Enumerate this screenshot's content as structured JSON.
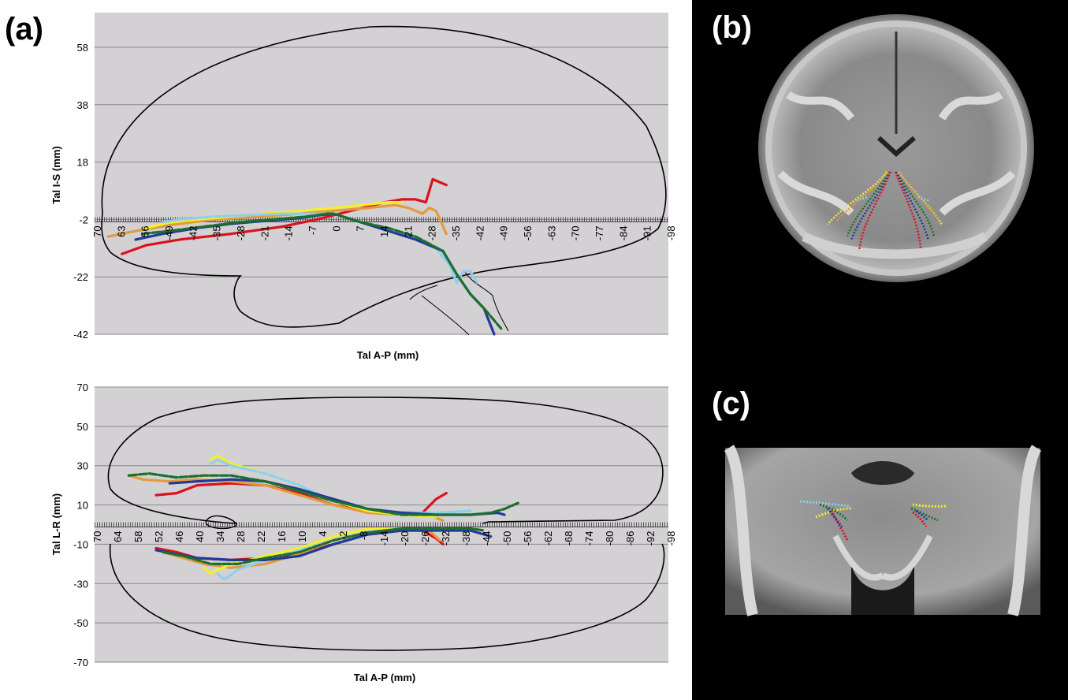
{
  "figure": {
    "panel_a_label": "(a)",
    "panel_b_label": "(b)",
    "panel_c_label": "(c)"
  },
  "colors": {
    "plot_bg": "#d3d1d3",
    "gridline": "#888888",
    "red": "#d8131e",
    "orange": "#e39a3c",
    "yellow": "#f4ef2a",
    "light_blue": "#8fcfee",
    "blue": "#23399a",
    "green": "#1f6f2c",
    "outline": "#000000",
    "image_bg": "#000000"
  },
  "chart_data": [
    {
      "type": "line",
      "panel": "(a) top",
      "xlabel": "Tal A-P (mm)",
      "ylabel": "Tal I-S (mm)",
      "xlim": [
        70,
        -98
      ],
      "ylim": [
        -42,
        58
      ],
      "yticks": [
        "58",
        "38",
        "18",
        "-2",
        "-22",
        "-42"
      ],
      "xticks": [
        "70",
        "63",
        "56",
        "-49",
        "-42",
        "-35",
        "-28",
        "-21",
        "-14",
        "-7",
        "0",
        "7",
        "14",
        "21",
        "-28",
        "-35",
        "-42",
        "-49",
        "-56",
        "-63",
        "-70",
        "-77",
        "-84",
        "-91",
        "-98"
      ],
      "series": [
        {
          "color": "red",
          "x": [
            62,
            55,
            45,
            30,
            15,
            5,
            -5,
            -15,
            -20,
            -24,
            -27,
            -29,
            -31,
            -33
          ],
          "y": [
            -14,
            -11,
            -9,
            -7,
            -4.5,
            -2,
            1,
            4,
            5,
            5,
            4,
            12,
            11,
            10
          ]
        },
        {
          "color": "orange",
          "x": [
            66,
            58,
            48,
            35,
            22,
            10,
            0,
            -10,
            -18,
            -22,
            -26,
            -28,
            -30,
            -33
          ],
          "y": [
            -8,
            -6,
            -4,
            -2,
            -1,
            0,
            1,
            2,
            3,
            2,
            0,
            2,
            1,
            -7
          ]
        },
        {
          "color": "yellow",
          "x": [
            55,
            48,
            40,
            30,
            20,
            10,
            0,
            -8,
            -16,
            -20
          ],
          "y": [
            -5,
            -3,
            -2,
            -1,
            0,
            1,
            2,
            3,
            4,
            4
          ]
        },
        {
          "color": "light_blue",
          "x": [
            50,
            45,
            35,
            25,
            15,
            7,
            0,
            -8,
            -16,
            -24,
            -30,
            -34,
            -36,
            -38,
            -40,
            -42
          ],
          "y": [
            -3,
            -2,
            -1,
            -0.5,
            0,
            0,
            0,
            -3,
            -6,
            -8,
            -12,
            -18,
            -24,
            -20,
            -20,
            -24
          ]
        },
        {
          "color": "blue",
          "x": [
            58,
            50,
            40,
            30,
            20,
            10,
            4,
            0,
            -8,
            -16,
            -24,
            -32,
            -36,
            -40,
            -44,
            -47
          ],
          "y": [
            -9,
            -7,
            -5,
            -3.5,
            -2.5,
            -1.5,
            -0.5,
            0,
            -3,
            -6,
            -9,
            -13,
            -21,
            -28,
            -33,
            -42
          ]
        },
        {
          "color": "green",
          "x": [
            56,
            48,
            38,
            28,
            18,
            8,
            2,
            0,
            -8,
            -16,
            -24,
            -32,
            -36,
            -40,
            -44,
            -49
          ],
          "y": [
            -7,
            -6,
            -4.5,
            -3,
            -2,
            -1,
            0,
            0,
            -3,
            -5,
            -8,
            -13,
            -21,
            -28,
            -33,
            -40
          ]
        }
      ]
    },
    {
      "type": "line",
      "panel": "(a) bottom",
      "xlabel": "Tal A-P (mm)",
      "ylabel": "Tal L-R (mm)",
      "xlim": [
        70,
        -98
      ],
      "ylim": [
        -70,
        70
      ],
      "yticks": [
        "70",
        "50",
        "30",
        "10",
        "-10",
        "-30",
        "-50",
        "-70"
      ],
      "xticks": [
        "70",
        "64",
        "58",
        "52",
        "46",
        "40",
        "34",
        "28",
        "22",
        "16",
        "10",
        "4",
        "-2",
        "-8",
        "-14",
        "-20",
        "-26",
        "-32",
        "-38",
        "-44",
        "-50",
        "-56",
        "-62",
        "-68",
        "-74",
        "-80",
        "-86",
        "-92",
        "-98"
      ],
      "series": [
        {
          "color": "red",
          "x": [
            52,
            46,
            40,
            30,
            20,
            10,
            0,
            -10,
            -20,
            -26,
            -30,
            -33,
            52,
            46,
            40,
            30,
            20,
            10,
            0,
            -10,
            -20,
            -26,
            -30,
            -32
          ],
          "y": [
            15,
            16,
            20,
            21,
            20,
            16,
            10,
            7,
            6,
            6,
            13,
            16,
            -12,
            -14,
            -17,
            -18,
            -17,
            -15,
            -10,
            -5,
            -3,
            -3,
            -7,
            -10
          ]
        },
        {
          "color": "orange",
          "x": [
            60,
            56,
            48,
            40,
            30,
            20,
            10,
            0,
            -10,
            -20,
            -28,
            -32,
            50,
            44,
            38,
            30,
            20,
            10,
            0,
            -10,
            -20,
            -28,
            -31
          ],
          "y": [
            25,
            23,
            22,
            23,
            22,
            20,
            15,
            10,
            6,
            5,
            5,
            2,
            -14,
            -17,
            -20,
            -22,
            -20,
            -15,
            -8,
            -4,
            -3,
            -3,
            -8
          ]
        },
        {
          "color": "yellow",
          "x": [
            36,
            34,
            30,
            20,
            10,
            0,
            -10,
            -20,
            -30,
            38,
            36,
            34,
            30,
            20,
            10,
            0,
            -10,
            -20
          ],
          "y": [
            33,
            35,
            31,
            26,
            20,
            12,
            7,
            5,
            4,
            -22,
            -25,
            -23,
            -20,
            -16,
            -12,
            -6,
            -2,
            -2
          ]
        },
        {
          "color": "light_blue",
          "x": [
            36,
            34,
            30,
            20,
            10,
            0,
            -10,
            -20,
            -30,
            -40,
            34,
            32,
            28,
            20,
            10,
            0,
            -10,
            -20
          ],
          "y": [
            31,
            33,
            30,
            26,
            20,
            12,
            8,
            6,
            6,
            7,
            -25,
            -28,
            -23,
            -18,
            -13,
            -8,
            -4,
            -2
          ]
        },
        {
          "color": "blue",
          "x": [
            48,
            40,
            30,
            20,
            10,
            0,
            -10,
            -20,
            -30,
            -40,
            -48,
            -50,
            52,
            46,
            40,
            30,
            20,
            10,
            0,
            -10,
            -20,
            -30,
            -40,
            -46
          ],
          "y": [
            21,
            22,
            23,
            22,
            18,
            13,
            8,
            6,
            5,
            5,
            6,
            5,
            -13,
            -15,
            -17,
            -18,
            -18,
            -16,
            -10,
            -5,
            -3,
            -3,
            -3,
            -6
          ]
        },
        {
          "color": "green",
          "x": [
            60,
            54,
            46,
            38,
            30,
            20,
            10,
            0,
            -10,
            -20,
            -30,
            -40,
            -46,
            -50,
            -54,
            50,
            44,
            36,
            28,
            20,
            10,
            0,
            -10,
            -20,
            -30,
            -40,
            -44
          ],
          "y": [
            25,
            26,
            24,
            25,
            25,
            22,
            17,
            12,
            8,
            5,
            5,
            5,
            6,
            8,
            11,
            -14,
            -16,
            -20,
            -20,
            -17,
            -14,
            -8,
            -4,
            -2,
            -2,
            -2,
            -3
          ]
        }
      ]
    }
  ]
}
